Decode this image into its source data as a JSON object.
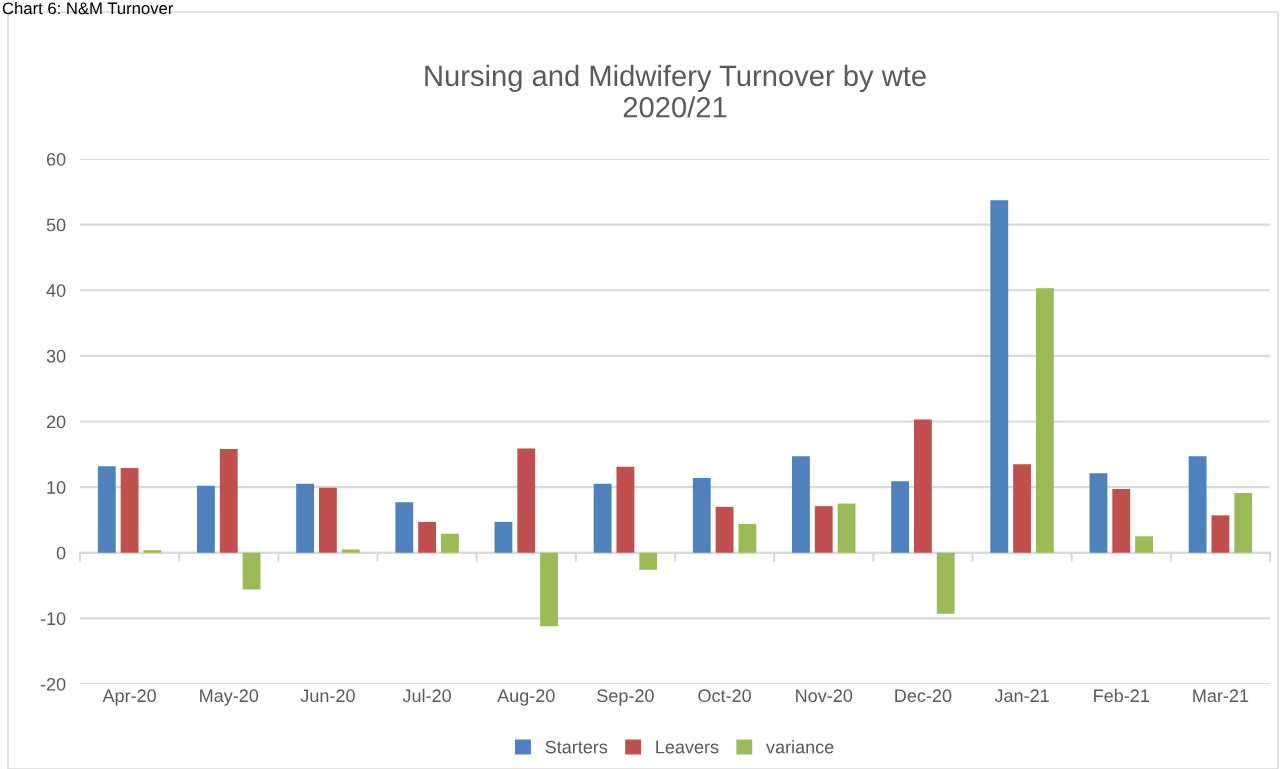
{
  "chart_data": {
    "type": "bar",
    "title": "Nursing and Midwifery Turnover by wte\n2020/21",
    "annotations": [
      "Chart 6: N&M Turnover"
    ],
    "categories": [
      "Apr-20",
      "May-20",
      "Jun-20",
      "Jul-20",
      "Aug-20",
      "Sep-20",
      "Oct-20",
      "Nov-20",
      "Dec-20",
      "Jan-21",
      "Feb-21",
      "Mar-21"
    ],
    "series": [
      {
        "name": "Starters",
        "color": "#4f81bd",
        "values": [
          13.2,
          10.2,
          10.5,
          7.7,
          4.7,
          10.5,
          11.4,
          14.7,
          10.9,
          53.7,
          12.1,
          14.7
        ]
      },
      {
        "name": "Leavers",
        "color": "#c0504d",
        "values": [
          12.9,
          15.8,
          9.9,
          4.7,
          15.9,
          13.1,
          7.0,
          7.1,
          20.3,
          13.5,
          9.7,
          5.7
        ]
      },
      {
        "name": "variance",
        "color": "#9bbb59",
        "values": [
          0.4,
          -5.6,
          0.5,
          2.9,
          -11.2,
          -2.6,
          4.4,
          7.5,
          -9.3,
          40.3,
          2.5,
          9.1
        ]
      }
    ],
    "ylim": [
      -20,
      60
    ],
    "yticks": [
      -20,
      -10,
      0,
      10,
      20,
      30,
      40,
      50,
      60
    ],
    "grid": "y",
    "legend": "bottom"
  }
}
